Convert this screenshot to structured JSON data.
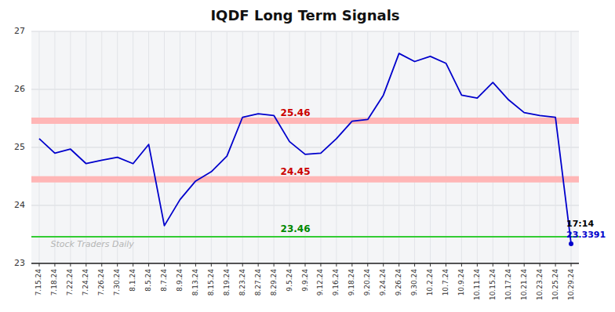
{
  "chart_data": {
    "type": "line",
    "title": "IQDF Long Term Signals",
    "categories": [
      "7.15.24",
      "7.18.24",
      "7.22.24",
      "7.24.24",
      "7.26.24",
      "7.30.24",
      "8.1.24",
      "8.5.24",
      "8.7.24",
      "8.9.24",
      "8.13.24",
      "8.15.24",
      "8.19.24",
      "8.23.24",
      "8.27.24",
      "8.29.24",
      "9.5.24",
      "9.9.24",
      "9.12.24",
      "9.16.24",
      "9.18.24",
      "9.20.24",
      "9.24.24",
      "9.26.24",
      "9.30.24",
      "10.2.24",
      "10.7.24",
      "10.9.24",
      "10.11.24",
      "10.15.24",
      "10.17.24",
      "10.21.24",
      "10.23.24",
      "10.25.24",
      "10.29.24"
    ],
    "values": [
      25.15,
      24.9,
      24.97,
      24.72,
      24.78,
      24.83,
      24.72,
      25.05,
      23.65,
      24.1,
      24.42,
      24.58,
      24.85,
      25.52,
      25.58,
      25.55,
      25.1,
      24.88,
      24.9,
      25.15,
      25.45,
      25.48,
      25.9,
      26.62,
      26.48,
      26.57,
      26.45,
      25.9,
      25.85,
      26.12,
      25.82,
      25.6,
      25.55,
      25.52,
      23.3391
    ],
    "color": "#0000CC",
    "ylim": [
      23,
      27
    ],
    "yticks": [
      23,
      24,
      25,
      26,
      27
    ],
    "grid": true,
    "reference_lines": [
      {
        "value": 25.46,
        "label": "25.46",
        "color": "#FFB6B6",
        "label_color": "#CC0000"
      },
      {
        "value": 24.45,
        "label": "24.45",
        "color": "#FFB6B6",
        "label_color": "#CC0000"
      },
      {
        "value": 23.46,
        "label": "23.46",
        "color": "#33CC33",
        "label_color": "#008800"
      }
    ],
    "annotations": [
      "17:14",
      "23.3391"
    ],
    "watermark": "Stock Traders Daily"
  }
}
